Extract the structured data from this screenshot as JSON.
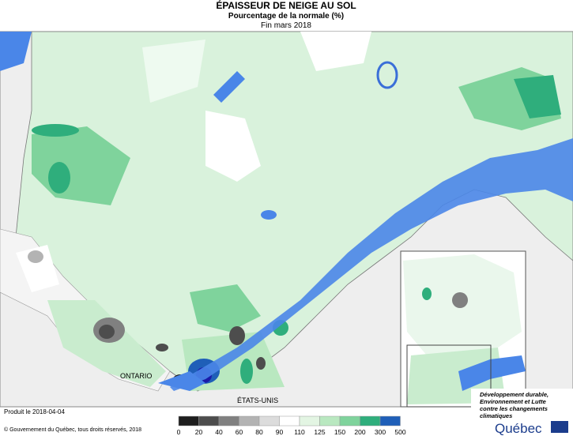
{
  "header": {
    "title": "ÉPAISSEUR DE NEIGE AU SOL",
    "subtitle": "Pourcentage de la normale (%)",
    "period": "Fin mars 2018"
  },
  "map_labels": {
    "ontario": "ONTARIO",
    "usa": "ÉTATS-UNIS"
  },
  "legend": {
    "ticks": [
      0,
      20,
      40,
      60,
      80,
      90,
      110,
      125,
      150,
      200,
      300,
      500
    ],
    "colors": [
      "#1e1e1e",
      "#4d4d4d",
      "#808080",
      "#b3b3b3",
      "#dcdcdc",
      "#ffffff",
      "#e3f5e3",
      "#b9e8c0",
      "#7fd39c",
      "#2fae7c",
      "#1f5fb8"
    ]
  },
  "footer": {
    "produced": "Produit le 2018-04-04",
    "copyright": "© Gouvernement du Québec, tous droits réservés, 2018",
    "ministry": [
      "Développement durable,",
      "Environnement et Lutte",
      "contre les changements",
      "climatiques"
    ],
    "brand": "Québec"
  }
}
